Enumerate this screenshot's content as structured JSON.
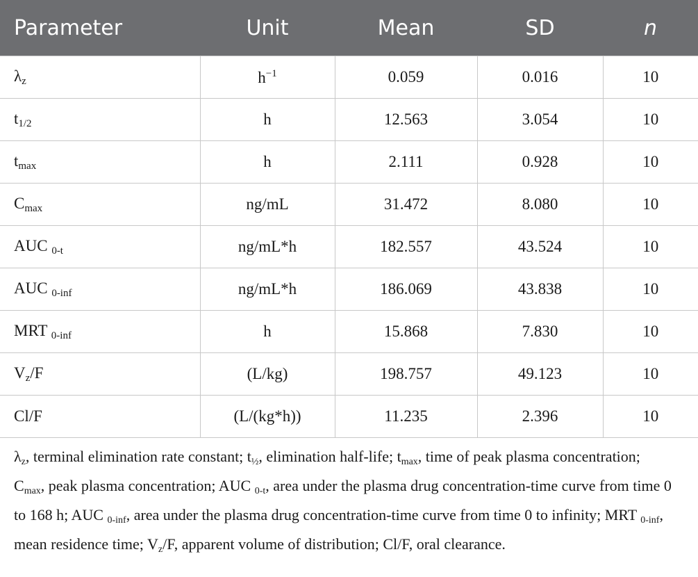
{
  "table": {
    "header": [
      "Parameter",
      "Unit",
      "Mean",
      "SD",
      "n"
    ],
    "rows": [
      [
        {
          "main": "λ",
          "sub": "z"
        },
        {
          "main": "h",
          "sup": "−1"
        },
        "0.059",
        "0.016",
        "10"
      ],
      [
        {
          "main": "t",
          "sub": "1/2"
        },
        "h",
        "12.563",
        "3.054",
        "10"
      ],
      [
        {
          "main": "t",
          "sub": "max"
        },
        "h",
        "2.111",
        "0.928",
        "10"
      ],
      [
        {
          "main": "C",
          "sub": "max"
        },
        "ng/mL",
        "31.472",
        "8.080",
        "10"
      ],
      [
        {
          "main": "AUC ",
          "sub": "0-t"
        },
        "ng/mL*h",
        "182.557",
        "43.524",
        "10"
      ],
      [
        {
          "main": "AUC ",
          "sub": "0-inf"
        },
        "ng/mL*h",
        "186.069",
        "43.838",
        "10"
      ],
      [
        {
          "main": "MRT ",
          "sub": "0-inf"
        },
        "h",
        "15.868",
        "7.830",
        "10"
      ],
      [
        {
          "main": "V",
          "sub": "z",
          "after": "/F"
        },
        "(L/kg)",
        "198.757",
        "49.123",
        "10"
      ],
      [
        "Cl/F",
        "(L/(kg*h))",
        "11.235",
        "2.396",
        "10"
      ]
    ]
  },
  "footnote": [
    {
      "text": "λ"
    },
    {
      "sub": "z"
    },
    {
      "text": ", terminal elimination rate constant; t"
    },
    {
      "sub": "½"
    },
    {
      "text": ", elimination half-life; t"
    },
    {
      "sub": "max"
    },
    {
      "text": ", time of peak plasma concentration; C"
    },
    {
      "sub": "max"
    },
    {
      "text": ", peak plasma concentration; AUC "
    },
    {
      "sub": "0-t"
    },
    {
      "text": ", area under the plasma drug concentration-time curve from time 0 to 168 h; AUC "
    },
    {
      "sub": "0-inf"
    },
    {
      "text": ", area under the plasma drug concentration-time curve from time 0 to infinity; MRT "
    },
    {
      "sub": "0-inf"
    },
    {
      "text": ", mean residence time; V"
    },
    {
      "sub": "z"
    },
    {
      "text": "/F, apparent volume of distribution; Cl/F, oral clearance."
    }
  ]
}
